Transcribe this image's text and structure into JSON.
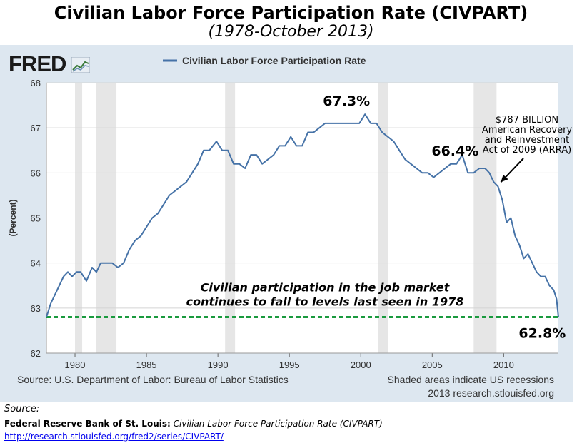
{
  "page": {
    "title": "Civilian Labor Force Participation Rate (CIVPART)",
    "subtitle": "(1978-October 2013)"
  },
  "branding": {
    "logo_text": "FRED",
    "logo_icon": "chart-line-icon"
  },
  "footer": {
    "source_label": "Source:",
    "publisher": "Federal Reserve Bank of St. Louis:",
    "series_name": "Civilian Labor Force Participation Rate (CIVPART)",
    "url": "http://research.stlouisfed.org/fred2/series/CIVPART/"
  },
  "chart_data": {
    "type": "line",
    "title": "",
    "legend": {
      "label": "Civilian Labor Force Participation Rate",
      "position": "top"
    },
    "xlabel": "",
    "ylabel": "(Percent)",
    "xlim": [
      1978,
      2013.83
    ],
    "ylim": [
      62,
      68
    ],
    "x_ticks": [
      1980,
      1985,
      1990,
      1995,
      2000,
      2005,
      2010
    ],
    "y_ticks": [
      62,
      63,
      64,
      65,
      66,
      67,
      68
    ],
    "grid": "horizontal",
    "colors": {
      "line": "#4572a7",
      "recession": "#e6e6e6",
      "reference": "#1a9a3e",
      "background": "#dde7f0"
    },
    "series": [
      {
        "name": "Civilian Labor Force Participation Rate",
        "x": [
          1978.0,
          1978.3,
          1978.6,
          1978.9,
          1979.2,
          1979.5,
          1979.8,
          1980.1,
          1980.4,
          1980.8,
          1981.2,
          1981.5,
          1981.8,
          1982.2,
          1982.6,
          1983.0,
          1983.4,
          1983.8,
          1984.2,
          1984.6,
          1985.0,
          1985.4,
          1985.8,
          1986.2,
          1986.6,
          1987.0,
          1987.4,
          1987.8,
          1988.2,
          1988.6,
          1989.0,
          1989.4,
          1989.9,
          1990.3,
          1990.7,
          1991.1,
          1991.5,
          1991.9,
          1992.3,
          1992.7,
          1993.1,
          1993.5,
          1993.9,
          1994.3,
          1994.7,
          1995.1,
          1995.5,
          1995.9,
          1996.3,
          1996.7,
          1997.1,
          1997.5,
          1997.9,
          1998.3,
          1998.7,
          1999.1,
          1999.5,
          1999.9,
          2000.3,
          2000.7,
          2001.1,
          2001.5,
          2001.9,
          2002.3,
          2002.7,
          2003.1,
          2003.5,
          2003.9,
          2004.3,
          2004.7,
          2005.1,
          2005.5,
          2005.9,
          2006.3,
          2006.7,
          2007.1,
          2007.5,
          2007.9,
          2008.3,
          2008.7,
          2009.0,
          2009.3,
          2009.6,
          2009.9,
          2010.2,
          2010.5,
          2010.8,
          2011.1,
          2011.4,
          2011.7,
          2012.0,
          2012.3,
          2012.6,
          2012.9,
          2013.2,
          2013.5,
          2013.7,
          2013.83
        ],
        "y": [
          62.8,
          63.1,
          63.3,
          63.5,
          63.7,
          63.8,
          63.7,
          63.8,
          63.8,
          63.6,
          63.9,
          63.8,
          64.0,
          64.0,
          64.0,
          63.9,
          64.0,
          64.3,
          64.5,
          64.6,
          64.8,
          65.0,
          65.1,
          65.3,
          65.5,
          65.6,
          65.7,
          65.8,
          66.0,
          66.2,
          66.5,
          66.5,
          66.7,
          66.5,
          66.5,
          66.2,
          66.2,
          66.1,
          66.4,
          66.4,
          66.2,
          66.3,
          66.4,
          66.6,
          66.6,
          66.8,
          66.6,
          66.6,
          66.9,
          66.9,
          67.0,
          67.1,
          67.1,
          67.1,
          67.1,
          67.1,
          67.1,
          67.1,
          67.3,
          67.1,
          67.1,
          66.9,
          66.8,
          66.7,
          66.5,
          66.3,
          66.2,
          66.1,
          66.0,
          66.0,
          65.9,
          66.0,
          66.1,
          66.2,
          66.2,
          66.4,
          66.0,
          66.0,
          66.1,
          66.1,
          66.0,
          65.8,
          65.7,
          65.4,
          64.9,
          65.0,
          64.6,
          64.4,
          64.1,
          64.2,
          64.0,
          63.8,
          63.7,
          63.7,
          63.5,
          63.4,
          63.2,
          62.8
        ]
      }
    ],
    "recessions": [
      [
        1980.0,
        1980.5
      ],
      [
        1981.5,
        1982.9
      ],
      [
        1990.5,
        1991.2
      ],
      [
        2001.2,
        2001.9
      ],
      [
        2007.9,
        2009.5
      ]
    ],
    "reference_line": {
      "y": 62.8
    },
    "annotations": [
      {
        "text": "67.3%",
        "x": 1999.0,
        "y": 67.3
      },
      {
        "text": "66.4%",
        "x": 2006.6,
        "y": 66.4
      },
      {
        "text": "62.8%",
        "x": 2013.83,
        "y": 62.8
      },
      {
        "text": "$787 BILLION",
        "x": 2009.5,
        "y": 66.7
      },
      {
        "text": "American Recovery",
        "x": 2009.5,
        "y": 66.5
      },
      {
        "text": "and Reinvestment",
        "x": 2009.5,
        "y": 66.35
      },
      {
        "text": "Act of 2009 (ARRA)",
        "x": 2009.5,
        "y": 66.2
      }
    ],
    "note": [
      "Civilian participation in the job market",
      "continues to fall to levels last seen in 1978"
    ],
    "source_text": "Source: U.S. Department of Labor: Bureau of Labor Statistics",
    "recession_note": "Shaded areas indicate US recessions",
    "credit": "2013 research.stlouisfed.org"
  }
}
